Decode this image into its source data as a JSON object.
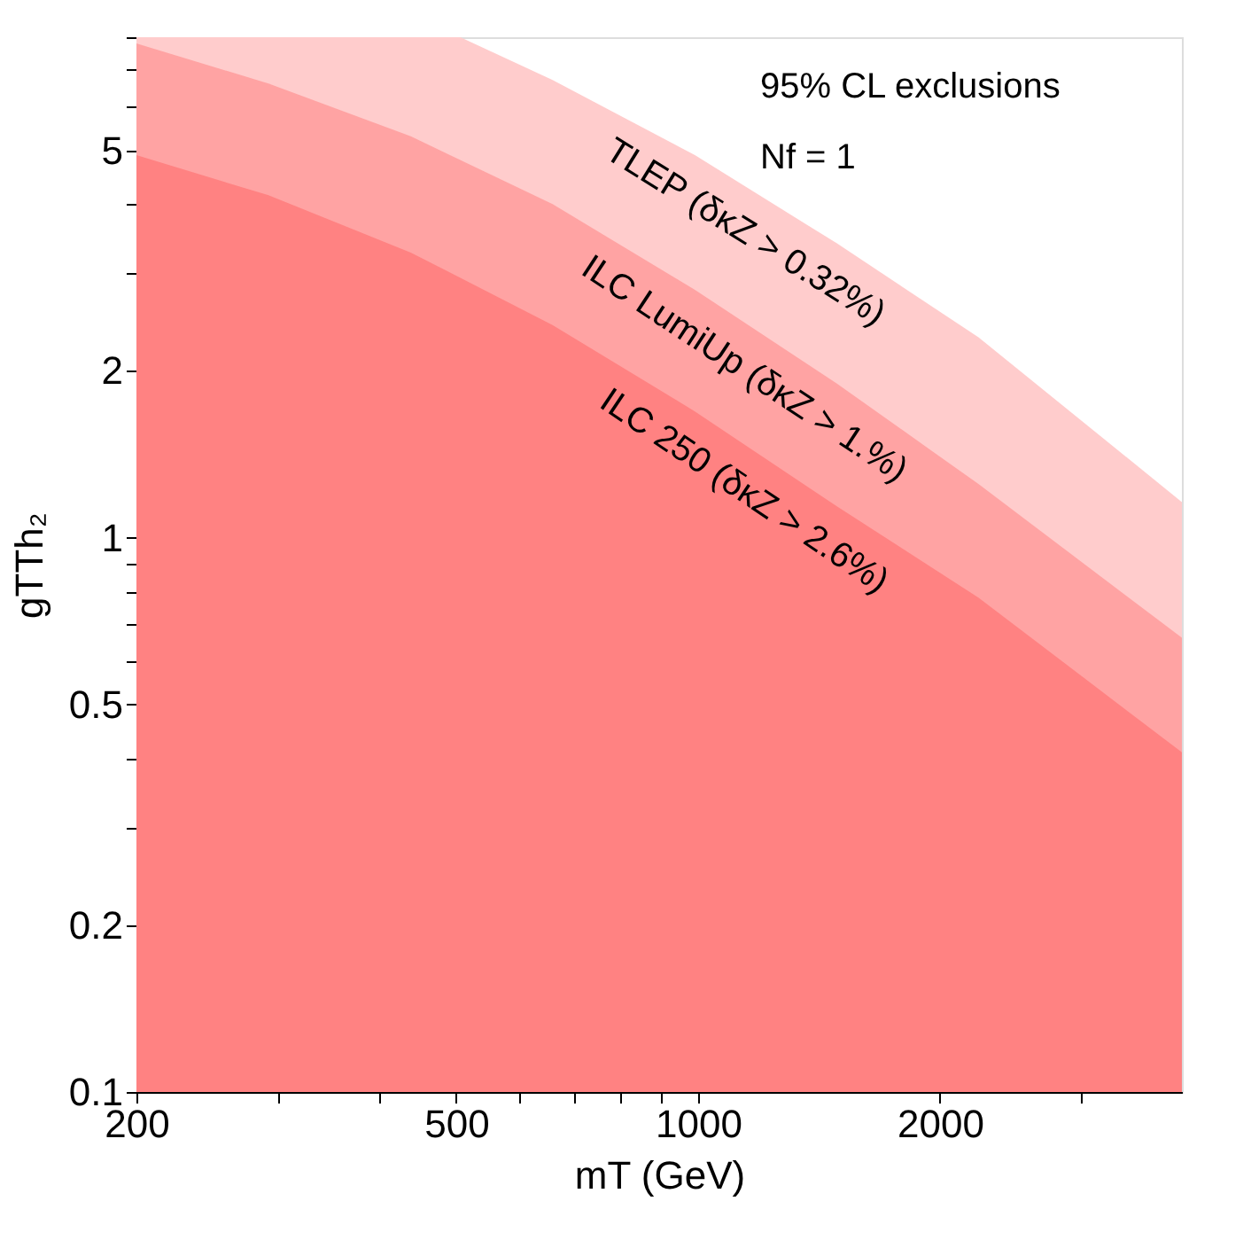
{
  "chart_data": {
    "type": "area",
    "xlabel": "mT (GeV)",
    "ylabel": "gTTh₂",
    "log": "xy",
    "grid": false,
    "xlim": [
      200,
      4000
    ],
    "ylim": [
      0.1,
      8
    ],
    "xticks": [
      200,
      {
        "value": 300,
        "label": null
      },
      {
        "value": 400,
        "label": null
      },
      500,
      {
        "value": 600,
        "label": null
      },
      {
        "value": 700,
        "label": null
      },
      {
        "value": 800,
        "label": null
      },
      {
        "value": 900,
        "label": null
      },
      1000,
      2000,
      {
        "value": 3000,
        "label": null
      }
    ],
    "yticks": [
      0.1,
      0.2,
      {
        "value": 0.3,
        "label": null
      },
      {
        "value": 0.4,
        "label": null
      },
      0.5,
      {
        "value": 0.6,
        "label": null
      },
      {
        "value": 0.7,
        "label": null
      },
      {
        "value": 0.8,
        "label": null
      },
      {
        "value": 0.9,
        "label": null
      },
      1,
      2,
      {
        "value": 3,
        "label": null
      },
      {
        "value": 4,
        "label": null
      },
      5,
      {
        "value": 6,
        "label": null
      },
      {
        "value": 7,
        "label": null
      },
      {
        "value": 8,
        "label": null
      }
    ],
    "series": [
      {
        "name": "TLEP (δκZ > 0.32%)",
        "color": "#ffcccc",
        "x": [
          200,
          506,
          659,
          991,
          1487,
          2233,
          4000
        ],
        "values": [
          8,
          8,
          6.7,
          4.9,
          3.4,
          2.3,
          1.16
        ]
      },
      {
        "name": "ILC LumiUp (δκZ > 1.%)",
        "color": "#ffa3a3",
        "x": [
          200,
          292,
          439,
          659,
          991,
          1487,
          2233,
          4000
        ],
        "values": [
          7.8,
          6.6,
          5.3,
          4.0,
          2.8,
          1.9,
          1.25,
          0.66
        ]
      },
      {
        "name": "ILC 250 (δκZ > 2.6%)",
        "color": "#ff8282",
        "x": [
          200,
          292,
          439,
          659,
          991,
          1487,
          2233,
          4000
        ],
        "values": [
          4.9,
          4.15,
          3.27,
          2.42,
          1.69,
          1.14,
          0.78,
          0.41
        ]
      }
    ],
    "annotations": [
      "95% CL exclusions",
      "Nf = 1"
    ]
  }
}
